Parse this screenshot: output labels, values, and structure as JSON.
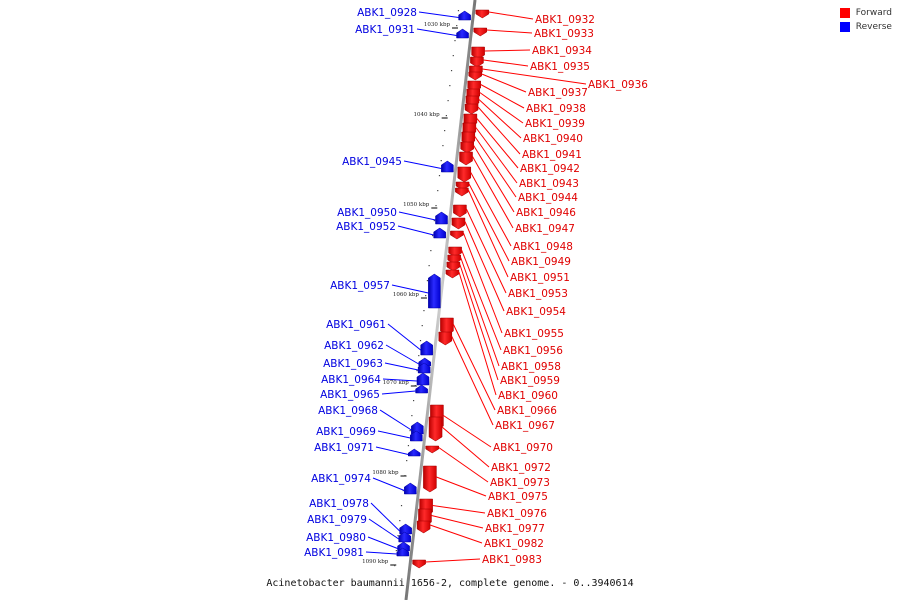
{
  "legend": {
    "forward_label": "Forward",
    "reverse_label": "Reverse",
    "forward_color": "#ff0000",
    "reverse_color": "#0000ff"
  },
  "caption": "Acinetobacter baumannii 1656-2, complete genome. - 0..3940614",
  "ticks": [
    "1030 kbp",
    "1040 kbp",
    "1050 kbp",
    "1060 kbp",
    "1070 kbp",
    "1080 kbp",
    "1090 kbp"
  ],
  "forward_genes": [
    "ABK1_0932",
    "ABK1_0933",
    "ABK1_0934",
    "ABK1_0935",
    "ABK1_0936",
    "ABK1_0937",
    "ABK1_0938",
    "ABK1_0939",
    "ABK1_0940",
    "ABK1_0941",
    "ABK1_0942",
    "ABK1_0943",
    "ABK1_0944",
    "ABK1_0946",
    "ABK1_0947",
    "ABK1_0948",
    "ABK1_0949",
    "ABK1_0951",
    "ABK1_0953",
    "ABK1_0954",
    "ABK1_0955",
    "ABK1_0956",
    "ABK1_0958",
    "ABK1_0959",
    "ABK1_0960",
    "ABK1_0966",
    "ABK1_0967",
    "ABK1_0970",
    "ABK1_0972",
    "ABK1_0973",
    "ABK1_0975",
    "ABK1_0976",
    "ABK1_0977",
    "ABK1_0982",
    "ABK1_0983"
  ],
  "reverse_genes": [
    "ABK1_0928",
    "ABK1_0931",
    "ABK1_0945",
    "ABK1_0950",
    "ABK1_0952",
    "ABK1_0957",
    "ABK1_0961",
    "ABK1_0962",
    "ABK1_0963",
    "ABK1_0964",
    "ABK1_0965",
    "ABK1_0968",
    "ABK1_0969",
    "ABK1_0971",
    "ABK1_0974",
    "ABK1_0978",
    "ABK1_0979",
    "ABK1_0980",
    "ABK1_0981"
  ]
}
